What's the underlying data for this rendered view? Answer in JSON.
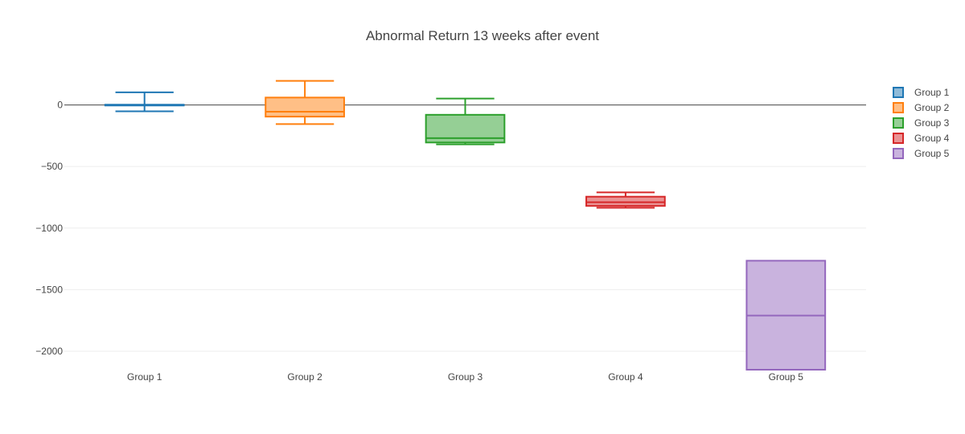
{
  "chart_data": {
    "type": "box",
    "title": "Abnormal Return 13 weeks after event",
    "xlabel": "",
    "ylabel": "",
    "ylim": [
      -2150,
      330
    ],
    "yticks": [
      0,
      -500,
      -1000,
      -1500,
      -2000
    ],
    "ytick_labels": [
      "0",
      "−500",
      "−1000",
      "−1500",
      "−2000"
    ],
    "categories": [
      "Group 1",
      "Group 2",
      "Group 3",
      "Group 4",
      "Group 5"
    ],
    "series": [
      {
        "name": "Group 1",
        "color": "#1f77b4",
        "fill": "#8fbbd9",
        "min": -52,
        "q1": -2,
        "median": 0,
        "q3": 2,
        "max": 102
      },
      {
        "name": "Group 2",
        "color": "#ff7f0e",
        "fill": "#ffbf86",
        "min": -155,
        "q1": -95,
        "median": -55,
        "q3": 60,
        "max": 195
      },
      {
        "name": "Group 3",
        "color": "#2ca02c",
        "fill": "#95cf95",
        "min": -320,
        "q1": -305,
        "median": -270,
        "q3": -80,
        "max": 52
      },
      {
        "name": "Group 4",
        "color": "#d62728",
        "fill": "#ea9293",
        "min": -835,
        "q1": -820,
        "median": -790,
        "q3": -745,
        "max": -710
      },
      {
        "name": "Group 5",
        "color": "#9467bd",
        "fill": "#c9b3de",
        "min": -2150,
        "q1": -2150,
        "median": -1710,
        "q3": -1265,
        "max": -1265
      }
    ],
    "grid": true,
    "legend": "right"
  }
}
